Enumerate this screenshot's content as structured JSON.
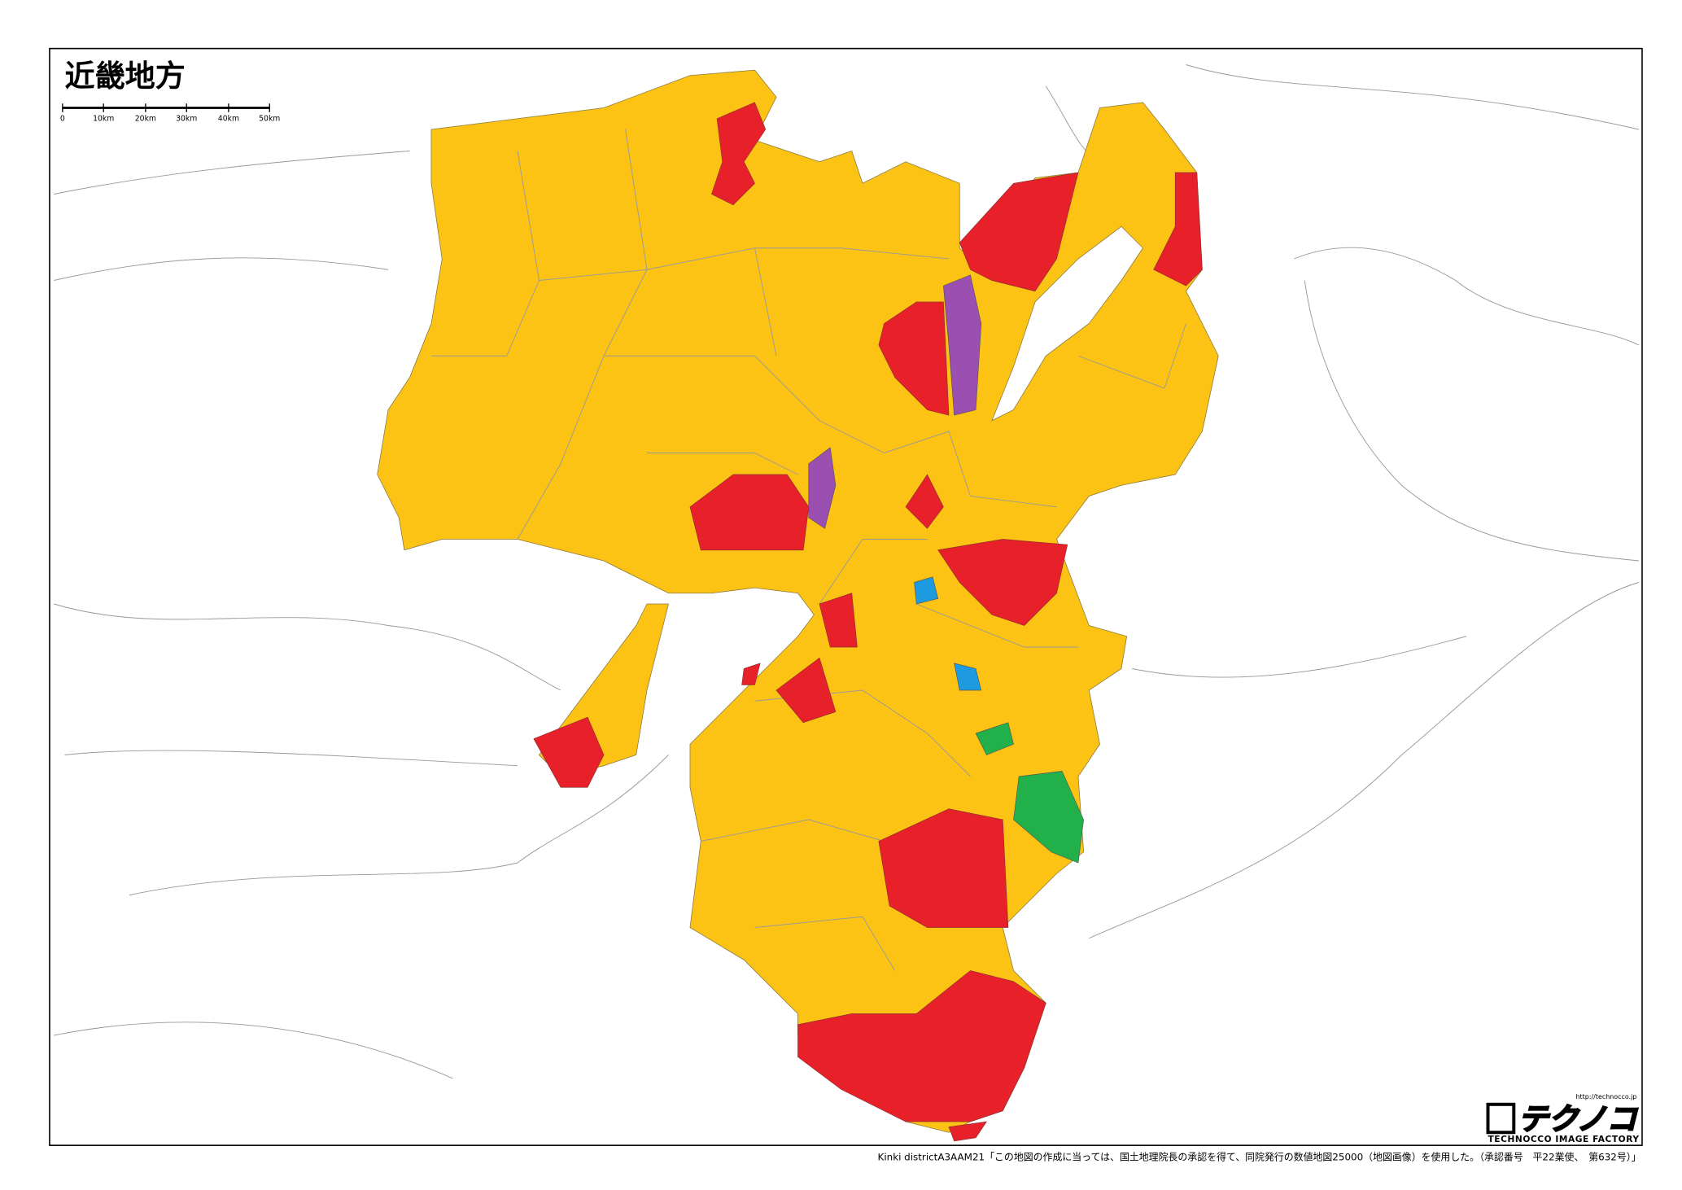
{
  "map": {
    "title": "近畿地方",
    "scale_bar": {
      "labels": [
        "0",
        "10km",
        "20km",
        "30km",
        "40km",
        "50km"
      ]
    }
  },
  "footer": {
    "caption": "Kinki districtA3AAM21「この地図の作成に当っては、国土地理院長の承認を得て、同院発行の数値地図25000（地図画像）を使用した。（承認番号　平22業使、　第632号）」"
  },
  "logo": {
    "url": "http://technocco.jp",
    "name": "テクノコ",
    "subtitle": "TECHNOCCO IMAGE FACTORY"
  }
}
